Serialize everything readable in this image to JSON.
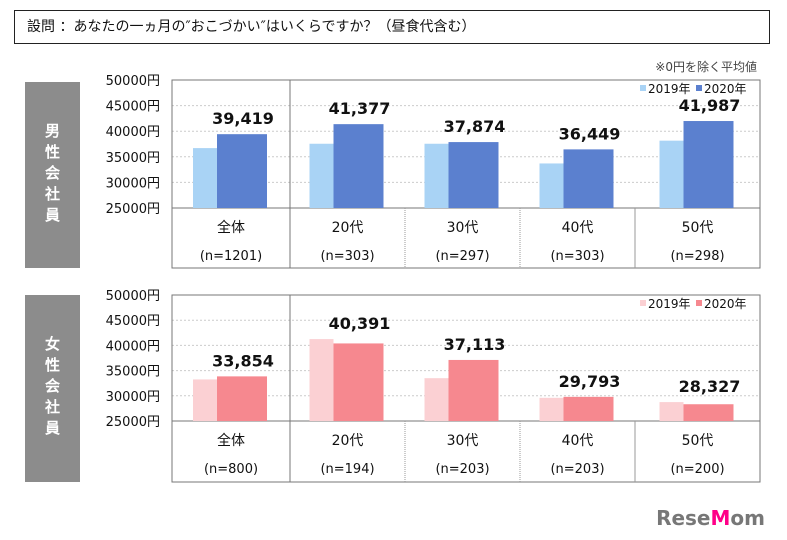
{
  "title": "設問 ：あなたの一ヵ月の″おこづかい″はいくらですか？（昼食代含む）",
  "note": "※0円を除く平均値",
  "logo": "ReseMom",
  "chart_data": [
    {
      "type": "bar",
      "panel_label": "男性会社員",
      "categories": [
        "全体",
        "20代",
        "30代",
        "40代",
        "50代"
      ],
      "sample_sizes": [
        "(n=1201)",
        "(n=303)",
        "(n=297)",
        "(n=303)",
        "(n=298)"
      ],
      "ylim": [
        25000,
        50000
      ],
      "yticks": [
        "25000円",
        "30000円",
        "35000円",
        "40000円",
        "45000円",
        "50000円"
      ],
      "legend": "top-right",
      "series": [
        {
          "name": "2019年",
          "color": "#a9d3f5",
          "values": [
            36700,
            37550,
            37550,
            33700,
            38150
          ]
        },
        {
          "name": "2020年",
          "color": "#5b80cf",
          "values": [
            39419,
            41377,
            37874,
            36449,
            41987
          ],
          "labels": [
            "39,419",
            "41,377",
            "37,874",
            "36,449",
            "41,987"
          ]
        }
      ]
    },
    {
      "type": "bar",
      "panel_label": "女性会社員",
      "categories": [
        "全体",
        "20代",
        "30代",
        "40代",
        "50代"
      ],
      "sample_sizes": [
        "(n=800)",
        "(n=194)",
        "(n=203)",
        "(n=203)",
        "(n=200)"
      ],
      "ylim": [
        25000,
        50000
      ],
      "yticks": [
        "25000円",
        "30000円",
        "35000円",
        "40000円",
        "45000円",
        "50000円"
      ],
      "legend": "top-right",
      "series": [
        {
          "name": "2019年",
          "color": "#fbd0d3",
          "values": [
            33250,
            41250,
            33500,
            29600,
            28750
          ]
        },
        {
          "name": "2020年",
          "color": "#f6888f",
          "values": [
            33854,
            40391,
            37113,
            29793,
            28327
          ],
          "labels": [
            "33,854",
            "40,391",
            "37,113",
            "29,793",
            "28,327"
          ]
        }
      ]
    }
  ]
}
